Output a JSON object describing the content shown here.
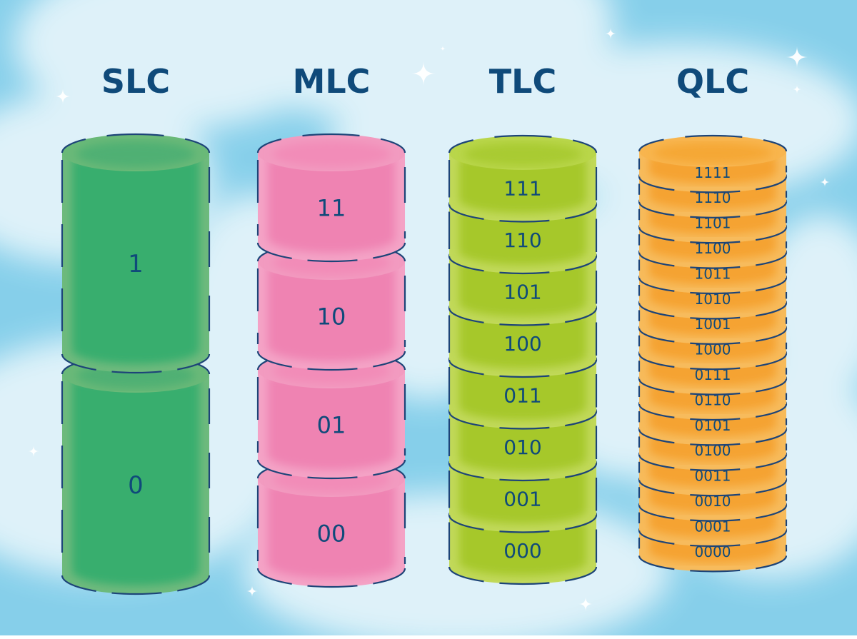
{
  "colors": {
    "sky_base": "#86cfea",
    "cloud": "#eef8fc",
    "outline": "#1d4478",
    "label": "#0f4a7a",
    "slc": {
      "face": "#38ae6e",
      "rim": "#6fba7d",
      "top": "#6ab978",
      "ellipse": "#4fb073"
    },
    "mlc": {
      "face": "#ef83b2",
      "rim": "#f4a3c6",
      "top": "#f29bc0",
      "ellipse": "#f28cb8"
    },
    "tlc": {
      "face": "#a6c82a",
      "rim": "#c1d95a",
      "top": "#b9d64a",
      "ellipse": "#a9cb32"
    },
    "qlc": {
      "face": "#f5a330",
      "rim": "#f7bb5c",
      "top": "#f8b54e",
      "ellipse": "#f5a735"
    }
  },
  "columns": [
    {
      "key": "slc",
      "title": "SLC",
      "values": [
        "1",
        "0"
      ]
    },
    {
      "key": "mlc",
      "title": "MLC",
      "values": [
        "11",
        "10",
        "01",
        "00"
      ]
    },
    {
      "key": "tlc",
      "title": "TLC",
      "values": [
        "111",
        "110",
        "101",
        "100",
        "011",
        "010",
        "001",
        "000"
      ]
    },
    {
      "key": "qlc",
      "title": "QLC",
      "values": [
        "1111",
        "1110",
        "1101",
        "1100",
        "1011",
        "1010",
        "1001",
        "1000",
        "0111",
        "0110",
        "0101",
        "0100",
        "0011",
        "0010",
        "0001",
        "0000"
      ]
    }
  ]
}
